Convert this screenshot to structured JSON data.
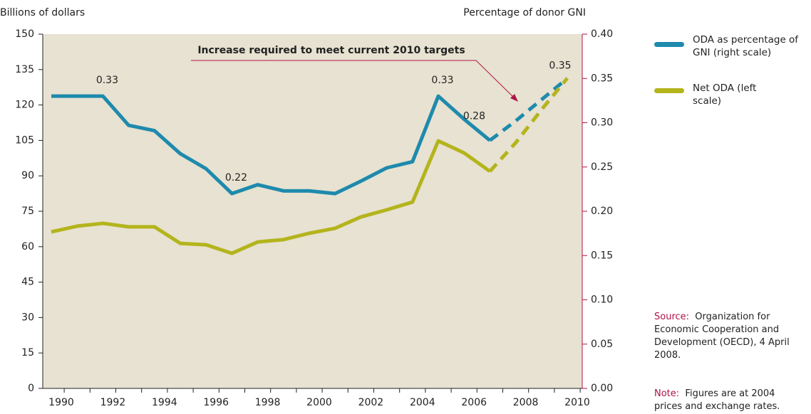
{
  "chart_data": {
    "type": "line",
    "ylabel": "Billions of dollars",
    "y2label": "Percentage of donor GNI",
    "annotation": "Increase required to meet current 2010 targets",
    "categories": [
      "1990",
      null,
      "1992",
      null,
      "1994",
      null,
      "1996",
      null,
      "1998",
      null,
      "2000",
      null,
      "2002",
      null,
      "2004",
      null,
      "2006",
      null,
      "2008",
      null,
      "2010"
    ],
    "dashed_from": 17,
    "series": [
      {
        "name": "ODA as percentage of GNI (right scale)",
        "color": "#1e8aad",
        "axis": "y2",
        "values": [
          0.33,
          0.33,
          0.33,
          0.297,
          0.291,
          0.265,
          0.248,
          0.22,
          0.23,
          0.223,
          0.223,
          0.22,
          0.234,
          0.249,
          0.256,
          0.33,
          0.304,
          0.28,
          0.302,
          0.326,
          0.35
        ],
        "value_labels": [
          null,
          null,
          "0.33",
          null,
          null,
          null,
          null,
          "0.22",
          null,
          null,
          null,
          null,
          null,
          null,
          null,
          "0.33",
          null,
          "0.28",
          null,
          null,
          "0.35"
        ]
      },
      {
        "name": "Net ODA (left scale)",
        "color": "#b4b41c",
        "values": [
          66.3,
          68.7,
          69.9,
          68.4,
          68.4,
          61.4,
          60.8,
          57.2,
          62.0,
          63.0,
          65.7,
          67.8,
          72.6,
          75.6,
          78.9,
          104.8,
          99.7,
          91.9,
          104,
          118,
          131.3
        ]
      }
    ],
    "ylim": [
      0,
      150
    ],
    "yticks": [
      0,
      15,
      30,
      45,
      60,
      75,
      90,
      105,
      120,
      135,
      150
    ],
    "y2lim": [
      0,
      0.4
    ],
    "y2ticks": [
      {
        "value": 0,
        "label": "0.00"
      },
      0.05,
      {
        "value": 0.1,
        "label": "0.10"
      },
      0.15,
      {
        "value": 0.2,
        "label": "0.20"
      },
      0.25,
      {
        "value": 0.3,
        "label": "0.30"
      },
      0.35,
      {
        "value": 0.4,
        "label": "0.40"
      }
    ],
    "grid": false,
    "source_label": "Source:",
    "source": "Organization for Economic Cooperation and Development (OECD), 4 April 2008.",
    "note_label": "Note:",
    "note": "Figures are at 2004 prices and exchange rates."
  }
}
